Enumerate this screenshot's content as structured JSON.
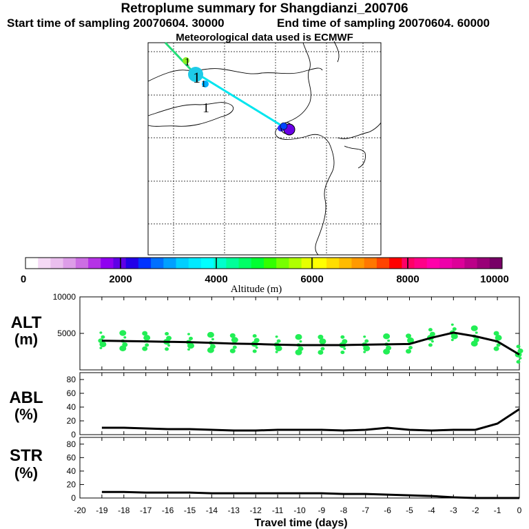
{
  "header": {
    "title": "Retroplume summary for Shangdianzi_200706",
    "start_label": "Start time of sampling 20070604. 30000",
    "end_label": "End time of sampling 20070604. 60000",
    "met_label": "Meteorological data used is ECMWF"
  },
  "colorbar": {
    "tick_labels": [
      "0",
      "2000",
      "4000",
      "6000",
      "8000",
      "10000"
    ],
    "title": "Altitude (m)",
    "colors": [
      "#ffffff",
      "#f5d9f5",
      "#eabfee",
      "#dd9de8",
      "#cc6ee3",
      "#b533e6",
      "#8f00f0",
      "#5f00e6",
      "#2200e8",
      "#0033ff",
      "#0070ff",
      "#00a0ff",
      "#00cfff",
      "#00eaff",
      "#00ffff",
      "#00ffcc",
      "#00ff99",
      "#00ff66",
      "#00ff33",
      "#33ff00",
      "#77ff00",
      "#b0ff00",
      "#e6ff00",
      "#ffff00",
      "#ffdd00",
      "#ffbb00",
      "#ff9900",
      "#ff7700",
      "#ff4400",
      "#ff0000",
      "#ff0066",
      "#ff0088",
      "#ff00aa",
      "#ee00aa",
      "#dd0099",
      "#bb0088",
      "#990077",
      "#770066"
    ]
  },
  "map": {
    "labels": [
      "1",
      "1",
      "1",
      "1"
    ],
    "trajectory_color": "#00e5ee"
  },
  "chart_data": [
    {
      "type": "line",
      "name": "ALT",
      "ylabel_line1": "ALT",
      "ylabel_line2": "(m)",
      "ylim": [
        0,
        10000
      ],
      "y_ticks": [
        "5000",
        "10000"
      ],
      "x": [
        -19,
        -18,
        -17,
        -16,
        -15,
        -14,
        -13,
        -12,
        -11,
        -10,
        -9,
        -8,
        -7,
        -6,
        -5,
        -4,
        -3,
        -2,
        -1,
        0
      ],
      "values": [
        4000,
        3950,
        3900,
        3850,
        3800,
        3700,
        3600,
        3550,
        3450,
        3400,
        3400,
        3400,
        3450,
        3500,
        3550,
        4400,
        5100,
        4600,
        3900,
        2100
      ],
      "scatter_color": "#22ee55"
    },
    {
      "type": "line",
      "name": "ABL",
      "ylabel_line1": "ABL",
      "ylabel_line2": "(%)",
      "ylim": [
        0,
        90
      ],
      "y_ticks": [
        "0",
        "20",
        "40",
        "60",
        "80"
      ],
      "x": [
        -19,
        -18,
        -17,
        -16,
        -15,
        -14,
        -13,
        -12,
        -11,
        -10,
        -9,
        -8,
        -7,
        -6,
        -5,
        -4,
        -3,
        -2,
        -1,
        0
      ],
      "values": [
        10,
        10,
        9,
        8,
        8,
        7,
        6,
        6,
        7,
        7,
        7,
        6,
        7,
        10,
        7,
        6,
        7,
        7,
        16,
        37
      ]
    },
    {
      "type": "line",
      "name": "STR",
      "ylabel_line1": "STR",
      "ylabel_line2": "(%)",
      "ylim": [
        0,
        90
      ],
      "y_ticks": [
        "0",
        "20",
        "40",
        "60",
        "80"
      ],
      "x": [
        -19,
        -18,
        -17,
        -16,
        -15,
        -14,
        -13,
        -12,
        -11,
        -10,
        -9,
        -8,
        -7,
        -6,
        -5,
        -4,
        -3,
        -2,
        -1,
        0
      ],
      "values": [
        9,
        9,
        8,
        8,
        8,
        7,
        7,
        7,
        7,
        7,
        7,
        6,
        6,
        5,
        4,
        3,
        1,
        0,
        0,
        0
      ]
    }
  ],
  "xaxis": {
    "xlabel": "Travel time (days)",
    "xlim": [
      -20,
      0
    ],
    "tick_labels": [
      "-20",
      "-19",
      "-18",
      "-17",
      "-16",
      "-15",
      "-14",
      "-13",
      "-12",
      "-11",
      "-10",
      "-9",
      "-8",
      "-7",
      "-6",
      "-5",
      "-4",
      "-3",
      "-2",
      "-1",
      "0"
    ]
  }
}
